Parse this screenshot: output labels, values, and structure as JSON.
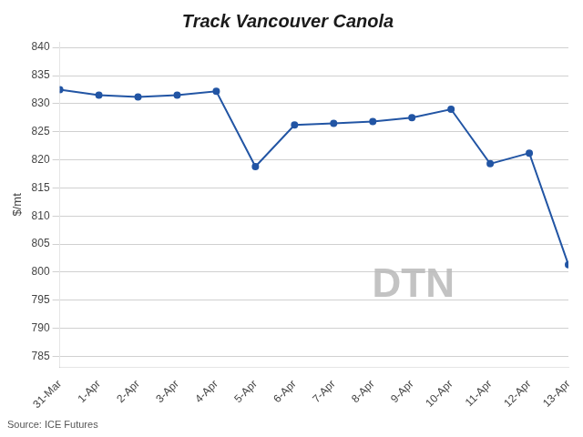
{
  "chart_data": {
    "type": "line",
    "title": "Track Vancouver Canola",
    "ylabel": "$/mt",
    "source": "Source: ICE Futures",
    "annotations": [
      "DTN"
    ],
    "categories": [
      "31-Mar",
      "1-Apr",
      "2-Apr",
      "3-Apr",
      "4-Apr",
      "5-Apr",
      "6-Apr",
      "7-Apr",
      "8-Apr",
      "9-Apr",
      "10-Apr",
      "11-Apr",
      "12-Apr",
      "13-Apr"
    ],
    "values": [
      832.5,
      831.5,
      831.2,
      831.5,
      832.2,
      818.8,
      826.2,
      826.5,
      826.8,
      827.5,
      829.0,
      819.3,
      821.2,
      801.3
    ],
    "color": "#2255a4",
    "marker": "circle",
    "ylim": [
      783,
      841
    ],
    "yticks": [
      785,
      790,
      795,
      800,
      805,
      810,
      815,
      820,
      825,
      830,
      835,
      840
    ],
    "grid": true
  }
}
